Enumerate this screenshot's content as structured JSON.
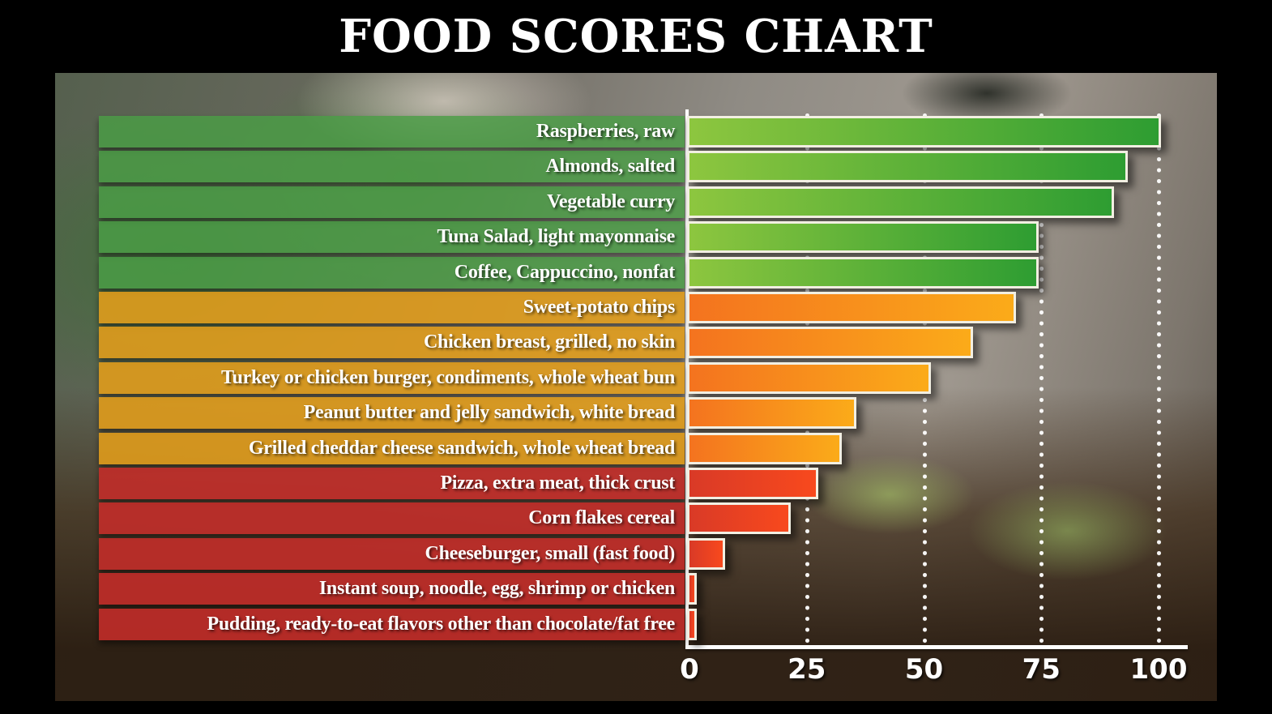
{
  "header": {
    "title": "FOOD SCORES CHART"
  },
  "chart_data": {
    "type": "bar",
    "orientation": "horizontal",
    "title": "FOOD SCORES CHART",
    "categories": [
      "Raspberries, raw",
      "Almonds, salted",
      "Vegetable curry",
      "Tuna Salad, light mayonnaise",
      "Coffee, Cappuccino, nonfat",
      "Sweet-potato chips",
      "Chicken breast, grilled, no skin",
      "Turkey or chicken burger, condiments, whole wheat bun",
      "Peanut butter and jelly sandwich, white bread",
      "Grilled cheddar cheese sandwich, whole wheat bread",
      "Pizza, extra meat, thick crust",
      "Corn flakes cereal",
      "Cheeseburger, small (fast food)",
      "Instant soup, noodle, egg, shrimp or chicken",
      "Pudding, ready-to-eat flavors other than chocolate/fat free"
    ],
    "values": [
      100,
      93,
      90,
      74,
      74,
      69,
      60,
      51,
      35,
      32,
      27,
      21,
      7,
      1,
      1
    ],
    "groups": [
      "green",
      "green",
      "green",
      "green",
      "green",
      "orange",
      "orange",
      "orange",
      "orange",
      "orange",
      "red",
      "red",
      "red",
      "red",
      "red"
    ],
    "xlabel": "",
    "ylabel": "",
    "xlim": [
      0,
      100
    ],
    "x_ticks": [
      0,
      25,
      50,
      75,
      100
    ],
    "legend": "none",
    "grid": "vertical white dotted gridlines at 25, 50, 75, 100",
    "colors": {
      "title_bg": "#000000",
      "title_color": "#ffffff",
      "axis": "#ffffff",
      "bar_border": "#f2efe2",
      "green_band": "rgba(74,158,70,0.82)",
      "orange_band": "rgba(226,157,26,0.88)",
      "red_band": "rgba(197,44,41,0.88)",
      "green_bar_start": "#8dc63f",
      "green_bar_end": "#2e9d32",
      "orange_bar_start": "#f4731f",
      "orange_bar_end": "#fbab19",
      "red_bar_start": "#d93a27",
      "red_bar_end": "#f8491d"
    }
  }
}
